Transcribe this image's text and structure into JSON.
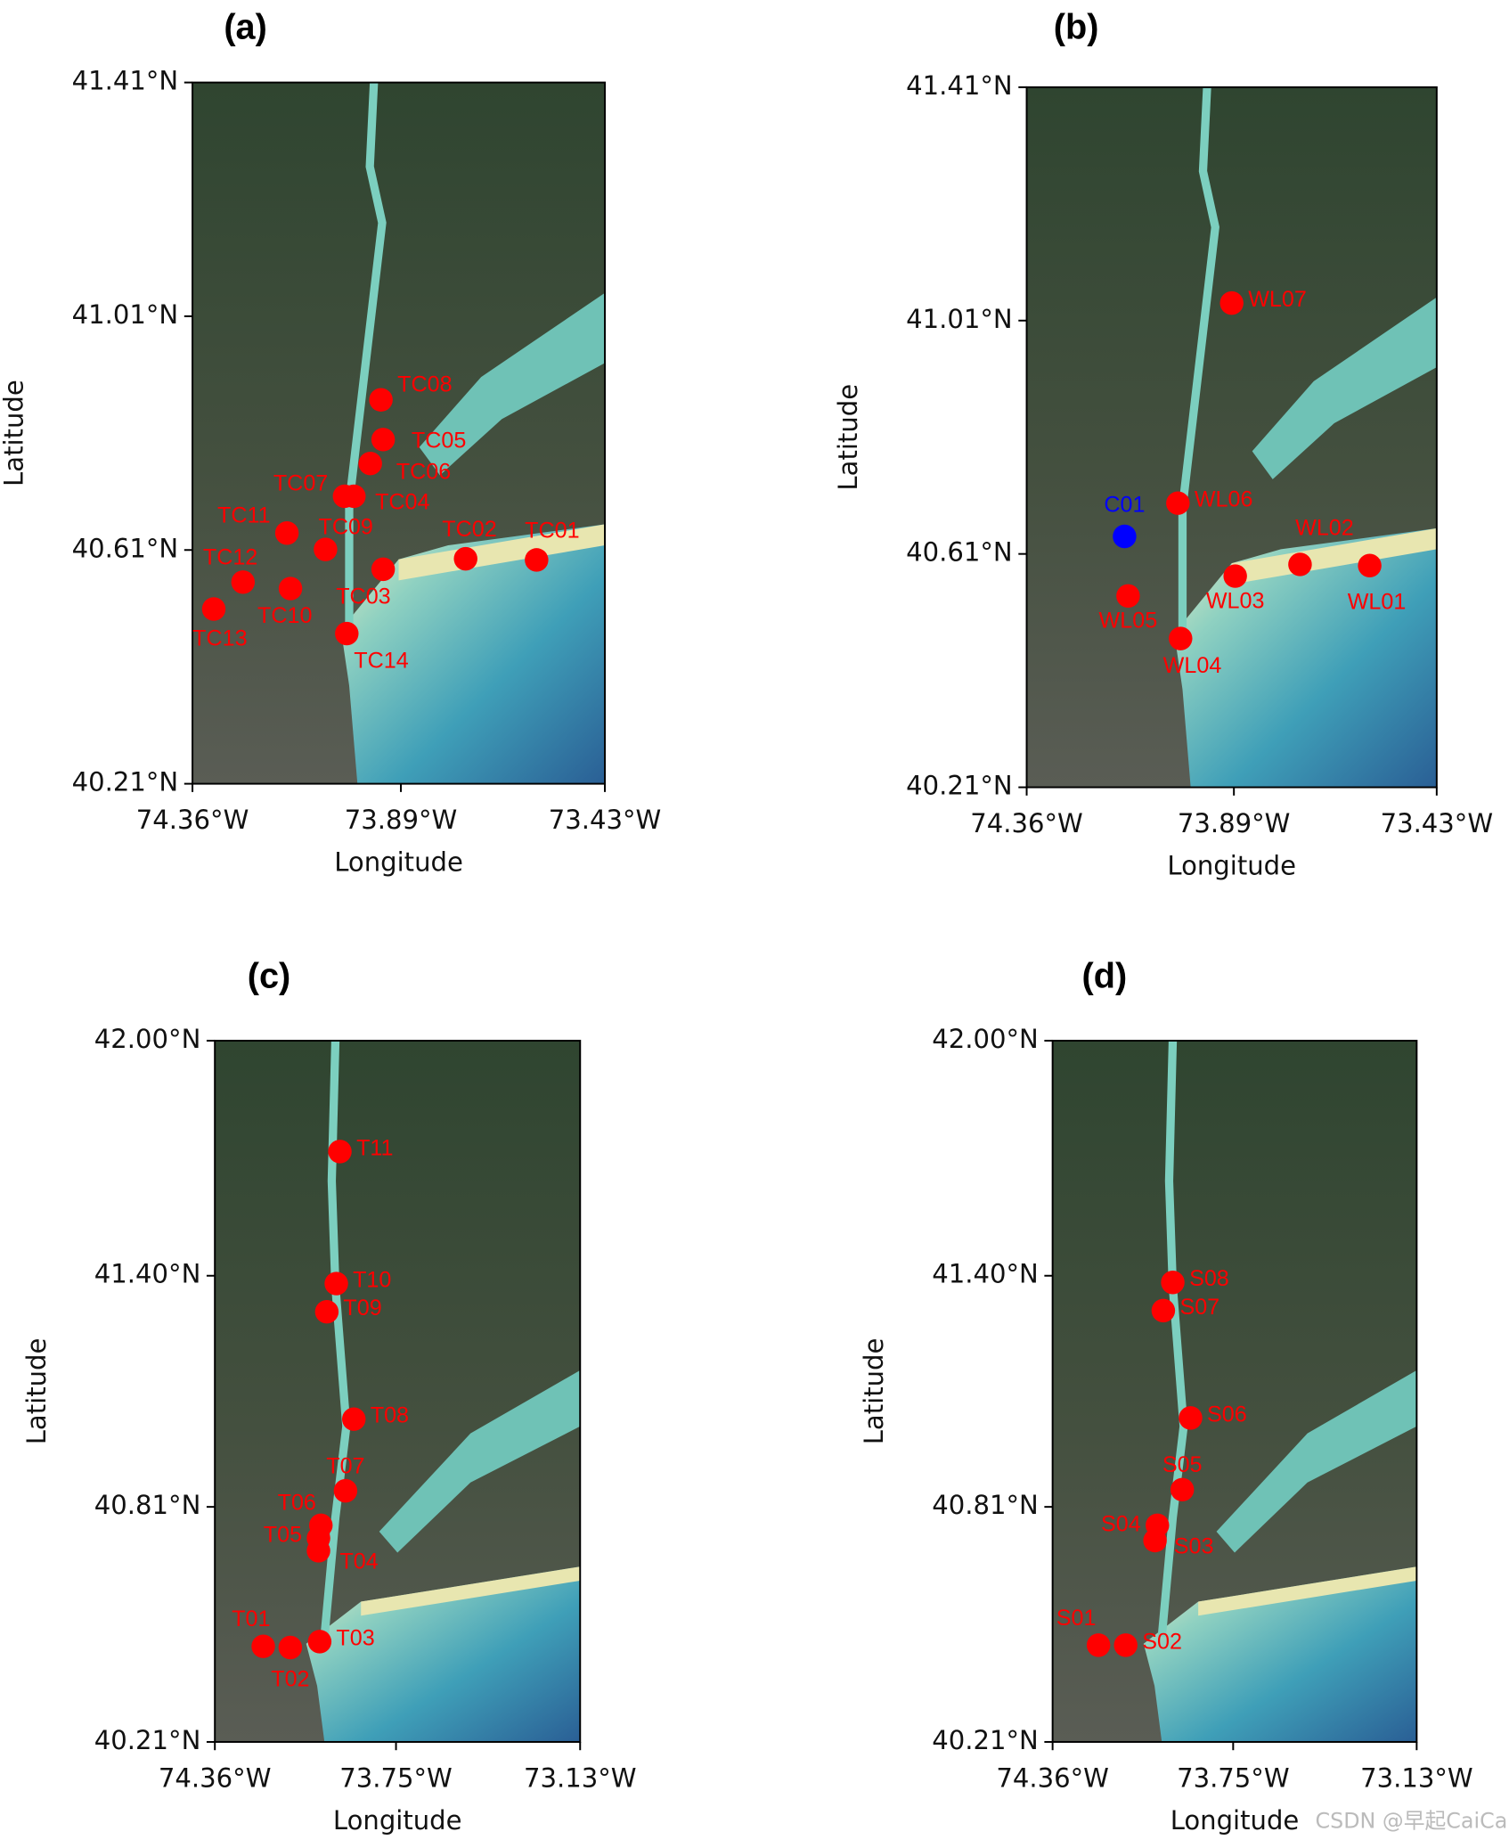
{
  "chart_data": [
    {
      "type": "scatter",
      "title": "(a)",
      "x_label": "Longitude",
      "y_label": "Latitude",
      "xlim": [
        -74.36,
        -73.43
      ],
      "ylim": [
        40.21,
        41.41
      ],
      "xticks": [
        {
          "value": -74.36,
          "label": "74.36°W"
        },
        {
          "value": -73.89,
          "label": "73.89°W"
        },
        {
          "value": -73.43,
          "label": "73.43°W"
        }
      ],
      "yticks": [
        {
          "value": 40.21,
          "label": "40.21°N"
        },
        {
          "value": 40.61,
          "label": "40.61°N"
        },
        {
          "value": 41.01,
          "label": "41.01°N"
        },
        {
          "value": 41.41,
          "label": "41.41°N"
        }
      ],
      "points": [
        {
          "label": "TC08",
          "x": -73.935,
          "y": 40.867,
          "color": "#ff0000"
        },
        {
          "label": "TC05",
          "x": -73.93,
          "y": 40.799,
          "color": "#ff0000"
        },
        {
          "label": "TC06",
          "x": -73.959,
          "y": 40.758,
          "color": "#ff0000"
        },
        {
          "label": "TC07",
          "x": -74.017,
          "y": 40.702,
          "color": "#ff0000"
        },
        {
          "label": "TC04",
          "x": -73.996,
          "y": 40.702,
          "color": "#ff0000"
        },
        {
          "label": "TC11",
          "x": -74.147,
          "y": 40.639,
          "color": "#ff0000"
        },
        {
          "label": "TC09",
          "x": -74.06,
          "y": 40.611,
          "color": "#ff0000"
        },
        {
          "label": "TC02",
          "x": -73.744,
          "y": 40.595,
          "color": "#ff0000"
        },
        {
          "label": "TC01",
          "x": -73.584,
          "y": 40.593,
          "color": "#ff0000"
        },
        {
          "label": "TC03",
          "x": -73.93,
          "y": 40.577,
          "color": "#ff0000"
        },
        {
          "label": "TC12",
          "x": -74.246,
          "y": 40.555,
          "color": "#ff0000"
        },
        {
          "label": "TC10",
          "x": -74.139,
          "y": 40.544,
          "color": "#ff0000"
        },
        {
          "label": "TC13",
          "x": -74.312,
          "y": 40.509,
          "color": "#ff0000"
        },
        {
          "label": "TC14",
          "x": -74.012,
          "y": 40.467,
          "color": "#ff0000"
        }
      ]
    },
    {
      "type": "scatter",
      "title": "(b)",
      "x_label": "Longitude",
      "y_label": "Latitude",
      "xlim": [
        -74.36,
        -73.43
      ],
      "ylim": [
        40.21,
        41.41
      ],
      "xticks": [
        {
          "value": -74.36,
          "label": "74.36°W"
        },
        {
          "value": -73.89,
          "label": "73.89°W"
        },
        {
          "value": -73.43,
          "label": "73.43°W"
        }
      ],
      "yticks": [
        {
          "value": 40.21,
          "label": "40.21°N"
        },
        {
          "value": 40.61,
          "label": "40.61°N"
        },
        {
          "value": 41.01,
          "label": "41.01°N"
        },
        {
          "value": 41.41,
          "label": "41.41°N"
        }
      ],
      "points": [
        {
          "label": "WL07",
          "x": -73.895,
          "y": 41.04,
          "color": "#ff0000"
        },
        {
          "label": "C01",
          "x": -74.138,
          "y": 40.64,
          "color": "#0000ff"
        },
        {
          "label": "WL06",
          "x": -74.017,
          "y": 40.697,
          "color": "#ff0000"
        },
        {
          "label": "WL02",
          "x": -73.74,
          "y": 40.592,
          "color": "#ff0000"
        },
        {
          "label": "WL01",
          "x": -73.582,
          "y": 40.59,
          "color": "#ff0000"
        },
        {
          "label": "WL03",
          "x": -73.887,
          "y": 40.572,
          "color": "#ff0000"
        },
        {
          "label": "WL05",
          "x": -74.13,
          "y": 40.538,
          "color": "#ff0000"
        },
        {
          "label": "WL04",
          "x": -74.011,
          "y": 40.465,
          "color": "#ff0000"
        }
      ]
    },
    {
      "type": "scatter",
      "title": "(c)",
      "x_label": "Longitude",
      "y_label": "Latitude",
      "xlim": [
        -74.36,
        -73.13
      ],
      "ylim": [
        40.21,
        42.0
      ],
      "xticks": [
        {
          "value": -74.36,
          "label": "74.36°W"
        },
        {
          "value": -73.75,
          "label": "73.75°W"
        },
        {
          "value": -73.13,
          "label": "73.13°W"
        }
      ],
      "yticks": [
        {
          "value": 40.21,
          "label": "40.21°N"
        },
        {
          "value": 40.81,
          "label": "40.81°N"
        },
        {
          "value": 41.4,
          "label": "41.40°N"
        },
        {
          "value": 42.0,
          "label": "42.00°N"
        }
      ],
      "points": [
        {
          "label": "T11",
          "x": -73.939,
          "y": 41.717,
          "color": "#ff0000"
        },
        {
          "label": "T10",
          "x": -73.951,
          "y": 41.38,
          "color": "#ff0000"
        },
        {
          "label": "T09",
          "x": -73.983,
          "y": 41.308,
          "color": "#ff0000"
        },
        {
          "label": "T08",
          "x": -73.892,
          "y": 41.034,
          "color": "#ff0000"
        },
        {
          "label": "T07",
          "x": -73.92,
          "y": 40.851,
          "color": "#ff0000"
        },
        {
          "label": "T06",
          "x": -74.003,
          "y": 40.763,
          "color": "#ff0000"
        },
        {
          "label": "T05",
          "x": -74.011,
          "y": 40.73,
          "color": "#ff0000"
        },
        {
          "label": "T04",
          "x": -74.011,
          "y": 40.698,
          "color": "#ff0000"
        },
        {
          "label": "T01",
          "x": -74.197,
          "y": 40.454,
          "color": "#ff0000"
        },
        {
          "label": "T02",
          "x": -74.106,
          "y": 40.451,
          "color": "#ff0000"
        },
        {
          "label": "T03",
          "x": -74.007,
          "y": 40.466,
          "color": "#ff0000"
        }
      ]
    },
    {
      "type": "scatter",
      "title": "(d)",
      "x_label": "Longitude",
      "y_label": "Latitude",
      "xlim": [
        -74.36,
        -73.13
      ],
      "ylim": [
        40.21,
        42.0
      ],
      "xticks": [
        {
          "value": -74.36,
          "label": "74.36°W"
        },
        {
          "value": -73.75,
          "label": "73.75°W"
        },
        {
          "value": -73.13,
          "label": "73.13°W"
        }
      ],
      "yticks": [
        {
          "value": 40.21,
          "label": "40.21°N"
        },
        {
          "value": 40.81,
          "label": "40.81°N"
        },
        {
          "value": 41.4,
          "label": "41.40°N"
        },
        {
          "value": 42.0,
          "label": "42.00°N"
        }
      ],
      "points": [
        {
          "label": "S08",
          "x": -73.954,
          "y": 41.383,
          "color": "#ff0000"
        },
        {
          "label": "S07",
          "x": -73.986,
          "y": 41.311,
          "color": "#ff0000"
        },
        {
          "label": "S06",
          "x": -73.894,
          "y": 41.037,
          "color": "#ff0000"
        },
        {
          "label": "S05",
          "x": -73.922,
          "y": 40.854,
          "color": "#ff0000"
        },
        {
          "label": "S04",
          "x": -74.006,
          "y": 40.763,
          "color": "#ff0000"
        },
        {
          "label": "S03",
          "x": -74.014,
          "y": 40.724,
          "color": "#ff0000"
        },
        {
          "label": "S01",
          "x": -74.205,
          "y": 40.457,
          "color": "#ff0000"
        },
        {
          "label": "S02",
          "x": -74.113,
          "y": 40.457,
          "color": "#ff0000"
        }
      ]
    }
  ],
  "watermark": "CSDN @早起CaiCai"
}
